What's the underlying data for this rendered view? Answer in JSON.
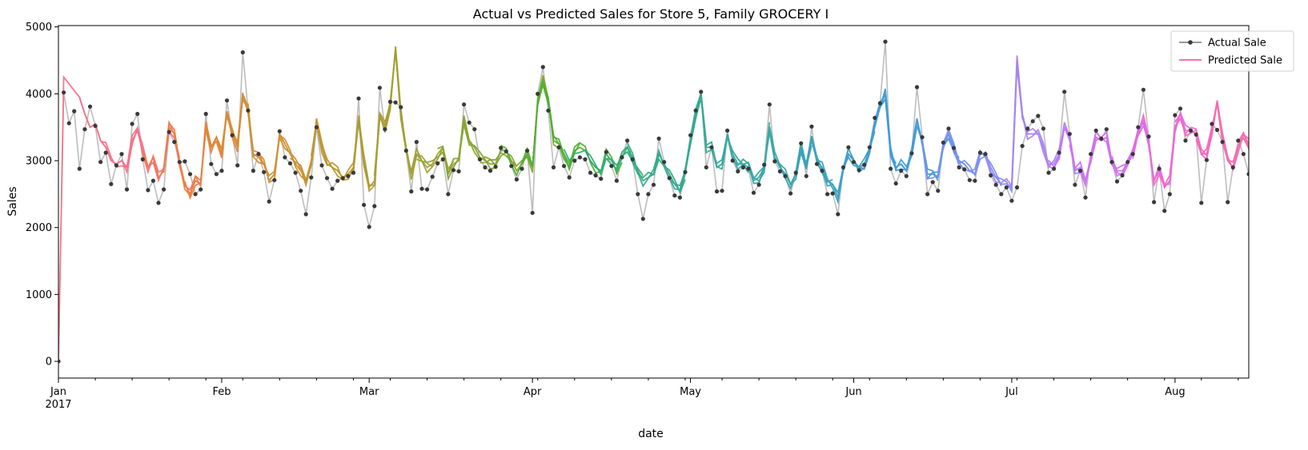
{
  "chart_data": {
    "type": "line",
    "title": "Actual vs Predicted Sales for Store 5, Family GROCERY I",
    "xlabel": "date",
    "ylabel": "Sales",
    "ylim": [
      -250,
      5020
    ],
    "xlim": [
      "2017-01-01",
      "2017-08-15"
    ],
    "grid": false,
    "legend_position": "top-right",
    "y_ticks": [
      0,
      1000,
      2000,
      3000,
      4000,
      5000
    ],
    "y_tick_labels": [
      "0",
      "1000",
      "2000",
      "3000",
      "4000",
      "5000"
    ],
    "x_ticks": [
      {
        "date": "2017-01-01",
        "label": "Jan",
        "sublabel": "2017"
      },
      {
        "date": "2017-02-01",
        "label": "Feb",
        "sublabel": ""
      },
      {
        "date": "2017-03-01",
        "label": "Mar",
        "sublabel": ""
      },
      {
        "date": "2017-04-01",
        "label": "Apr",
        "sublabel": ""
      },
      {
        "date": "2017-05-01",
        "label": "May",
        "sublabel": ""
      },
      {
        "date": "2017-06-01",
        "label": "Jun",
        "sublabel": ""
      },
      {
        "date": "2017-07-01",
        "label": "Jul",
        "sublabel": ""
      },
      {
        "date": "2017-08-01",
        "label": "Aug",
        "sublabel": ""
      }
    ],
    "series": [
      {
        "name": "Actual Sale",
        "color": "#bdbdbd",
        "marker_color": "#3a3a3a",
        "start_date": "2017-01-01",
        "values": [
          0,
          4020,
          3560,
          3740,
          2880,
          3470,
          3810,
          3520,
          2980,
          3120,
          2650,
          2930,
          3100,
          2570,
          3550,
          3700,
          3020,
          2560,
          2700,
          2370,
          2570,
          3430,
          3280,
          2980,
          2990,
          2800,
          2500,
          2570,
          3700,
          2950,
          2800,
          2850,
          3900,
          3380,
          2930,
          4620,
          3750,
          2850,
          3100,
          2830,
          2390,
          2710,
          3440,
          3050,
          2960,
          2820,
          2550,
          2200,
          2750,
          3500,
          2930,
          2740,
          2580,
          2700,
          2740,
          2770,
          2820,
          3930,
          2340,
          2010,
          2320,
          4090,
          3470,
          3880,
          3870,
          3800,
          3150,
          2540,
          3280,
          2580,
          2570,
          2760,
          2960,
          3020,
          2500,
          2860,
          2840,
          3840,
          3570,
          3470,
          3020,
          2900,
          2850,
          2910,
          3190,
          3140,
          2920,
          2720,
          2880,
          3150,
          2220,
          4000,
          4400,
          3750,
          2900,
          3200,
          2920,
          2750,
          3000,
          3050,
          3020,
          2820,
          2780,
          2730,
          3130,
          2920,
          2700,
          3050,
          3300,
          3020,
          2500,
          2130,
          2500,
          2640,
          3330,
          2980,
          2740,
          2480,
          2450,
          2830,
          3380,
          3750,
          4030,
          2900,
          3200,
          2540,
          2550,
          3450,
          3000,
          2840,
          2900,
          2880,
          2520,
          2640,
          2940,
          3840,
          2990,
          2840,
          2770,
          2510,
          2820,
          3260,
          2770,
          3510,
          2950,
          2850,
          2500,
          2510,
          2200,
          2900,
          3200,
          2980,
          2860,
          2940,
          3200,
          3640,
          3860,
          4780,
          2880,
          2660,
          2850,
          2770,
          3110,
          4100,
          3350,
          2500,
          2680,
          2550,
          3270,
          3480,
          3190,
          2900,
          2870,
          2710,
          2700,
          3120,
          3100,
          2780,
          2640,
          2500,
          2600,
          2400,
          2600,
          3220,
          3480,
          3590,
          3670,
          3480,
          2820,
          2880,
          3120,
          4030,
          3400,
          2640,
          2850,
          2450,
          3100,
          3450,
          3330,
          3470,
          2980,
          2690,
          2780,
          2980,
          3100,
          3500,
          4060,
          3360,
          2380,
          2880,
          2250,
          2500,
          3680,
          3780,
          3300,
          3450,
          3390,
          2370,
          3010,
          3550,
          3460,
          3280,
          2380,
          2900,
          3300,
          3100,
          2800
        ]
      },
      {
        "name": "Predicted Sale",
        "color": "#f0609f",
        "start_date": "2017-01-01",
        "values": [
          0,
          4250,
          4150,
          4050,
          3950,
          3700,
          3500,
          3550,
          3300,
          3200,
          3000,
          2950,
          3000,
          2900,
          3300,
          3450,
          3150,
          2900,
          3050,
          2750,
          2850,
          3500,
          3400,
          3000,
          2650,
          2500,
          2700,
          2650,
          3500,
          3200,
          3350,
          3100,
          3700,
          3400,
          3200,
          4000,
          3800,
          3100,
          3050,
          2950,
          2700,
          2800,
          3400,
          3250,
          3100,
          2950,
          2850,
          2700,
          3000,
          3600,
          3200,
          2950,
          2900,
          2850,
          2750,
          2800,
          2900,
          3600,
          3000,
          2600,
          2700,
          3700,
          3500,
          3800,
          4650,
          3700,
          3200,
          2800,
          3100,
          3000,
          2900,
          2950,
          3100,
          3200,
          2800,
          2950,
          3000,
          3600,
          3300,
          3200,
          3050,
          3000,
          2950,
          2950,
          3150,
          3150,
          3000,
          2850,
          2950,
          3100,
          2900,
          3900,
          4200,
          3900,
          3300,
          3250,
          3100,
          2950,
          3150,
          3200,
          3150,
          3000,
          2900,
          2850,
          3100,
          3000,
          2850,
          3050,
          3200,
          3050,
          2850,
          2700,
          2750,
          2800,
          3100,
          2950,
          2800,
          2650,
          2550,
          2800,
          3300,
          3700,
          4000,
          3200,
          3200,
          2900,
          2950,
          3400,
          3100,
          2950,
          2950,
          2900,
          2700,
          2750,
          2900,
          3500,
          3050,
          2900,
          2800,
          2650,
          2800,
          3200,
          2900,
          3300,
          3000,
          2900,
          2700,
          2650,
          2450,
          2850,
          3100,
          3000,
          2900,
          2950,
          3150,
          3500,
          3800,
          4000,
          3150,
          2900,
          2950,
          2850,
          3100,
          3600,
          3300,
          2800,
          2800,
          2750,
          3200,
          3400,
          3200,
          3000,
          2950,
          2850,
          2800,
          3100,
          3100,
          2900,
          2750,
          2650,
          2650,
          2600,
          4500,
          3700,
          3400,
          3400,
          3400,
          3200,
          2950,
          2950,
          3100,
          3500,
          3300,
          2850,
          2900,
          2700,
          3050,
          3350,
          3300,
          3350,
          3000,
          2850,
          2850,
          2950,
          3100,
          3400,
          3600,
          3300,
          2700,
          2850,
          2600,
          2700,
          3500,
          3700,
          3450,
          3450,
          3400,
          3100,
          3100,
          3450,
          3900,
          3350,
          3000,
          2900,
          3200,
          3400,
          3250,
          2800
        ]
      }
    ],
    "forecast_windows": {
      "window_length": 16,
      "palette": [
        "#f77189",
        "#ee7e3a",
        "#d18f31",
        "#bb9832",
        "#a39f31",
        "#86a531",
        "#4fb031",
        "#33ae75",
        "#35aa93",
        "#37a6a8",
        "#39a2bc",
        "#3e9bdb",
        "#7d8ff4",
        "#a984f4",
        "#d16ff4",
        "#f565cc",
        "#f66ba5"
      ]
    },
    "legend": [
      {
        "label": "Actual Sale",
        "style": "line-marker",
        "color": "#888888"
      },
      {
        "label": "Predicted Sale",
        "style": "line",
        "color": "#f0609f"
      }
    ]
  }
}
